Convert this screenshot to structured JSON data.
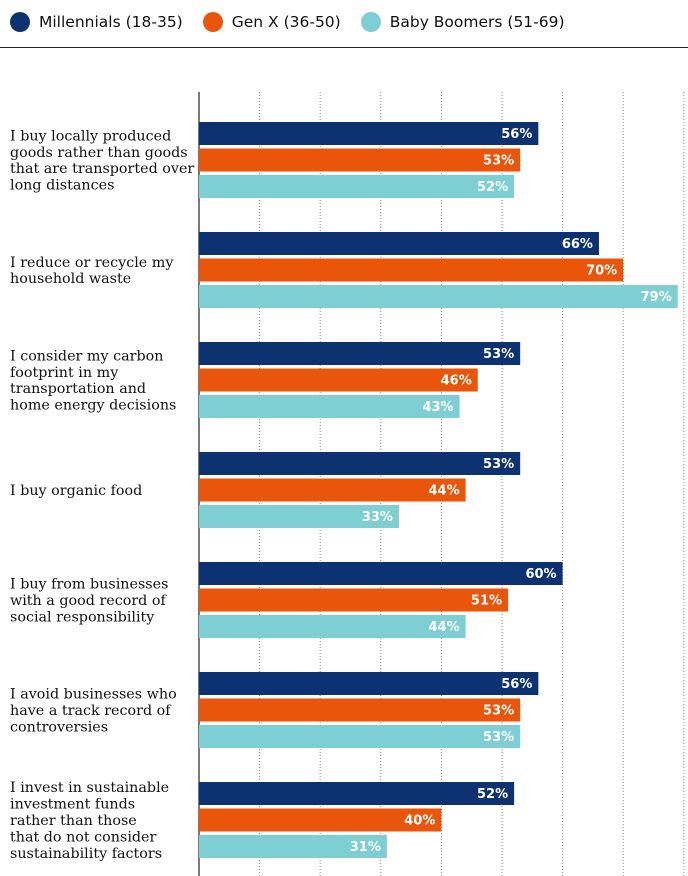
{
  "legend": [
    {
      "name": "Millennials (18-35)",
      "color": "#0d3272"
    },
    {
      "name": "Gen X (36-50)",
      "color": "#e9560b"
    },
    {
      "name": "Baby Boomers (51-69)",
      "color": "#7ecfd4"
    }
  ],
  "chart_data": {
    "type": "bar",
    "orientation": "horizontal",
    "title": "",
    "xlabel": "",
    "ylabel": "",
    "xlim": [
      0,
      80
    ],
    "grid": true,
    "legend_position": "top-left",
    "value_format": "percent",
    "categories": [
      "I buy locally produced goods rather than goods that are transported over long distances",
      "I reduce or recycle my household waste",
      "I consider my carbon footprint in my transportation and home energy decisions",
      "I buy organic food",
      "I buy from businesses with a good record of social responsibility",
      "I avoid businesses who have a track record of controversies",
      "I invest in sustainable investment funds rather than those that do not consider sustainability factors"
    ],
    "category_lines": [
      [
        "I buy locally produced",
        "goods rather than goods",
        "that are transported over",
        "long distances"
      ],
      [
        "I reduce or recycle my",
        "household waste"
      ],
      [
        "I consider my carbon",
        "footprint in my",
        "transportation and",
        "home energy decisions"
      ],
      [
        "I buy organic food"
      ],
      [
        "I buy from businesses",
        "with a good record of",
        "social responsibility"
      ],
      [
        "I avoid businesses who",
        "have a track record of",
        "controversies"
      ],
      [
        "I invest in sustainable",
        "investment funds",
        "rather than those",
        "that do not consider",
        "sustainability factors"
      ]
    ],
    "series": [
      {
        "name": "Millennials (18-35)",
        "color": "#0d3272",
        "values": [
          56,
          66,
          53,
          53,
          60,
          56,
          52
        ]
      },
      {
        "name": "Gen X (36-50)",
        "color": "#e9560b",
        "values": [
          53,
          70,
          46,
          44,
          51,
          53,
          40
        ]
      },
      {
        "name": "Baby Boomers (51-69)",
        "color": "#7ecfd4",
        "values": [
          52,
          79,
          43,
          33,
          44,
          53,
          31
        ]
      }
    ]
  }
}
